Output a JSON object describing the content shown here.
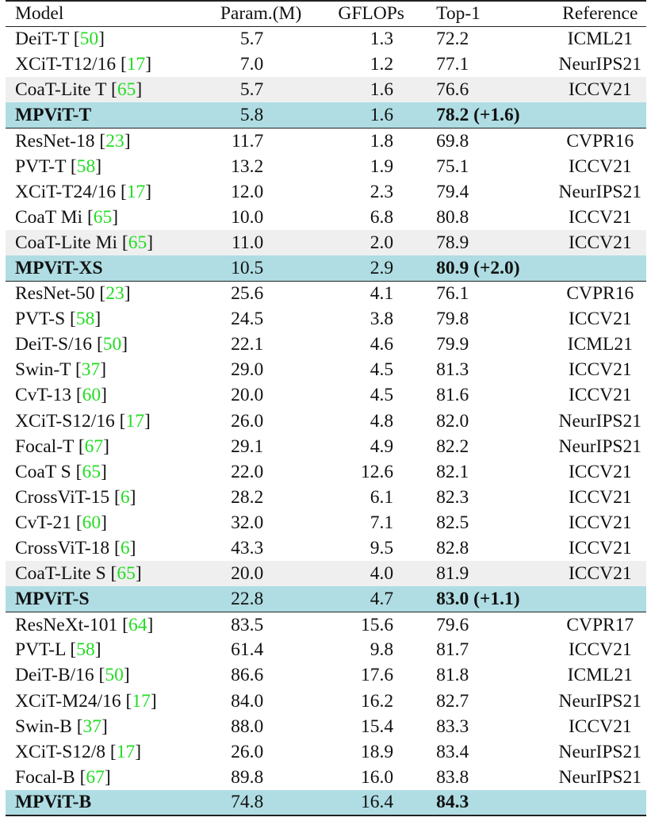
{
  "table": {
    "headers": {
      "model": "Model",
      "param": "Param.(M)",
      "gflops": "GFLOPs",
      "top1": "Top-1",
      "reference": "Reference"
    },
    "colors": {
      "highlight_row": "#afdde3",
      "shaded_row": "#efefef",
      "citation": "#22dd22"
    },
    "groups": [
      {
        "rows": [
          {
            "name": "DeiT-T",
            "cite": "50",
            "param": "5.7",
            "gflops": "1.3",
            "top1": "72.2",
            "ref": "ICML21",
            "style": "plain"
          },
          {
            "name": "XCiT-T12/16",
            "cite": "17",
            "param": "7.0",
            "gflops": "1.2",
            "top1": "77.1",
            "ref": "NeurIPS21",
            "style": "plain"
          },
          {
            "name": "CoaT-Lite T",
            "cite": "65",
            "param": "5.7",
            "gflops": "1.6",
            "top1": "76.6",
            "ref": "ICCV21",
            "style": "shade"
          },
          {
            "name": "MPViT-T",
            "cite": "",
            "param": "5.8",
            "gflops": "1.6",
            "top1": "78.2 (+1.6)",
            "ref": "",
            "style": "ours"
          }
        ]
      },
      {
        "rows": [
          {
            "name": "ResNet-18",
            "cite": "23",
            "param": "11.7",
            "gflops": "1.8",
            "top1": "69.8",
            "ref": "CVPR16",
            "style": "plain"
          },
          {
            "name": "PVT-T",
            "cite": "58",
            "param": "13.2",
            "gflops": "1.9",
            "top1": "75.1",
            "ref": "ICCV21",
            "style": "plain"
          },
          {
            "name": "XCiT-T24/16",
            "cite": "17",
            "param": "12.0",
            "gflops": "2.3",
            "top1": "79.4",
            "ref": "NeurIPS21",
            "style": "plain"
          },
          {
            "name": "CoaT Mi",
            "cite": "65",
            "param": "10.0",
            "gflops": "6.8",
            "top1": "80.8",
            "ref": "ICCV21",
            "style": "plain"
          },
          {
            "name": "CoaT-Lite Mi",
            "cite": "65",
            "param": "11.0",
            "gflops": "2.0",
            "top1": "78.9",
            "ref": "ICCV21",
            "style": "shade"
          },
          {
            "name": "MPViT-XS",
            "cite": "",
            "param": "10.5",
            "gflops": "2.9",
            "top1": "80.9 (+2.0)",
            "ref": "",
            "style": "ours"
          }
        ]
      },
      {
        "rows": [
          {
            "name": "ResNet-50",
            "cite": "23",
            "param": "25.6",
            "gflops": "4.1",
            "top1": "76.1",
            "ref": "CVPR16",
            "style": "plain"
          },
          {
            "name": "PVT-S",
            "cite": "58",
            "param": "24.5",
            "gflops": "3.8",
            "top1": "79.8",
            "ref": "ICCV21",
            "style": "plain"
          },
          {
            "name": "DeiT-S/16",
            "cite": "50",
            "param": "22.1",
            "gflops": "4.6",
            "top1": "79.9",
            "ref": "ICML21",
            "style": "plain"
          },
          {
            "name": "Swin-T",
            "cite": "37",
            "param": "29.0",
            "gflops": "4.5",
            "top1": "81.3",
            "ref": "ICCV21",
            "style": "plain"
          },
          {
            "name": "CvT-13",
            "cite": "60",
            "param": "20.0",
            "gflops": "4.5",
            "top1": "81.6",
            "ref": "ICCV21",
            "style": "plain"
          },
          {
            "name": "XCiT-S12/16",
            "cite": "17",
            "param": "26.0",
            "gflops": "4.8",
            "top1": "82.0",
            "ref": "NeurIPS21",
            "style": "plain"
          },
          {
            "name": "Focal-T",
            "cite": "67",
            "param": "29.1",
            "gflops": "4.9",
            "top1": "82.2",
            "ref": "NeurIPS21",
            "style": "plain"
          },
          {
            "name": "CoaT S",
            "cite": "65",
            "param": "22.0",
            "gflops": "12.6",
            "top1": "82.1",
            "ref": "ICCV21",
            "style": "plain"
          },
          {
            "name": "CrossViT-15",
            "cite": "6",
            "param": "28.2",
            "gflops": "6.1",
            "top1": "82.3",
            "ref": "ICCV21",
            "style": "plain"
          },
          {
            "name": "CvT-21",
            "cite": "60",
            "param": "32.0",
            "gflops": "7.1",
            "top1": "82.5",
            "ref": "ICCV21",
            "style": "plain"
          },
          {
            "name": "CrossViT-18",
            "cite": "6",
            "param": "43.3",
            "gflops": "9.5",
            "top1": "82.8",
            "ref": "ICCV21",
            "style": "plain"
          },
          {
            "name": "CoaT-Lite S",
            "cite": "65",
            "param": "20.0",
            "gflops": "4.0",
            "top1": "81.9",
            "ref": "ICCV21",
            "style": "shade"
          },
          {
            "name": "MPViT-S",
            "cite": "",
            "param": "22.8",
            "gflops": "4.7",
            "top1": "83.0 (+1.1)",
            "ref": "",
            "style": "ours"
          }
        ]
      },
      {
        "rows": [
          {
            "name": "ResNeXt-101",
            "cite": "64",
            "param": "83.5",
            "gflops": "15.6",
            "top1": "79.6",
            "ref": "CVPR17",
            "style": "plain"
          },
          {
            "name": "PVT-L",
            "cite": "58",
            "param": "61.4",
            "gflops": "9.8",
            "top1": "81.7",
            "ref": "ICCV21",
            "style": "plain"
          },
          {
            "name": "DeiT-B/16",
            "cite": "50",
            "param": "86.6",
            "gflops": "17.6",
            "top1": "81.8",
            "ref": "ICML21",
            "style": "plain"
          },
          {
            "name": "XCiT-M24/16",
            "cite": "17",
            "param": "84.0",
            "gflops": "16.2",
            "top1": "82.7",
            "ref": "NeurIPS21",
            "style": "plain"
          },
          {
            "name": "Swin-B",
            "cite": "37",
            "param": "88.0",
            "gflops": "15.4",
            "top1": "83.3",
            "ref": "ICCV21",
            "style": "plain"
          },
          {
            "name": "XCiT-S12/8",
            "cite": "17",
            "param": "26.0",
            "gflops": "18.9",
            "top1": "83.4",
            "ref": "NeurIPS21",
            "style": "plain"
          },
          {
            "name": "Focal-B",
            "cite": "67",
            "param": "89.8",
            "gflops": "16.0",
            "top1": "83.8",
            "ref": "NeurIPS21",
            "style": "plain"
          },
          {
            "name": "MPViT-B",
            "cite": "",
            "param": "74.8",
            "gflops": "16.4",
            "top1": "84.3",
            "ref": "",
            "style": "ours"
          }
        ]
      }
    ]
  }
}
